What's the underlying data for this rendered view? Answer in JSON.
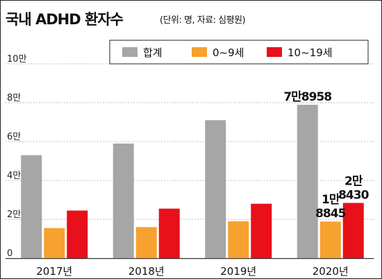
{
  "header": {
    "title": "국내 ADHD 환자수",
    "subtitle": "(단위: 명, 자료: 심평원)"
  },
  "chart_data": {
    "type": "bar",
    "title": "국내 ADHD 환자수",
    "subtitle": "(단위: 명, 자료: 심평원)",
    "categories": [
      "2017년",
      "2018년",
      "2019년",
      "2020년"
    ],
    "series": [
      {
        "name": "합계",
        "color": "#a6a6a6",
        "values": [
          53000,
          59000,
          71000,
          78958
        ]
      },
      {
        "name": "0~9세",
        "color": "#f7a12f",
        "values": [
          15500,
          16000,
          19000,
          18845
        ]
      },
      {
        "name": "10~19세",
        "color": "#e8101a",
        "values": [
          24500,
          25500,
          28000,
          28430
        ]
      }
    ],
    "ylim": [
      0,
      100000
    ],
    "y_ticks": [
      {
        "value": 0,
        "label": "0"
      },
      {
        "value": 20000,
        "label": "2만"
      },
      {
        "value": 40000,
        "label": "4만"
      },
      {
        "value": 60000,
        "label": "6만"
      },
      {
        "value": 80000,
        "label": "8만"
      },
      {
        "value": 100000,
        "label": "10만"
      }
    ],
    "grid": true,
    "legend_position": "top-right",
    "data_labels": [
      {
        "category": 3,
        "series": 0,
        "lines": [
          "7만8958"
        ]
      },
      {
        "category": 3,
        "series": 1,
        "lines": [
          "1만",
          "8845"
        ]
      },
      {
        "category": 3,
        "series": 2,
        "lines": [
          "2만",
          "8430"
        ]
      }
    ]
  }
}
